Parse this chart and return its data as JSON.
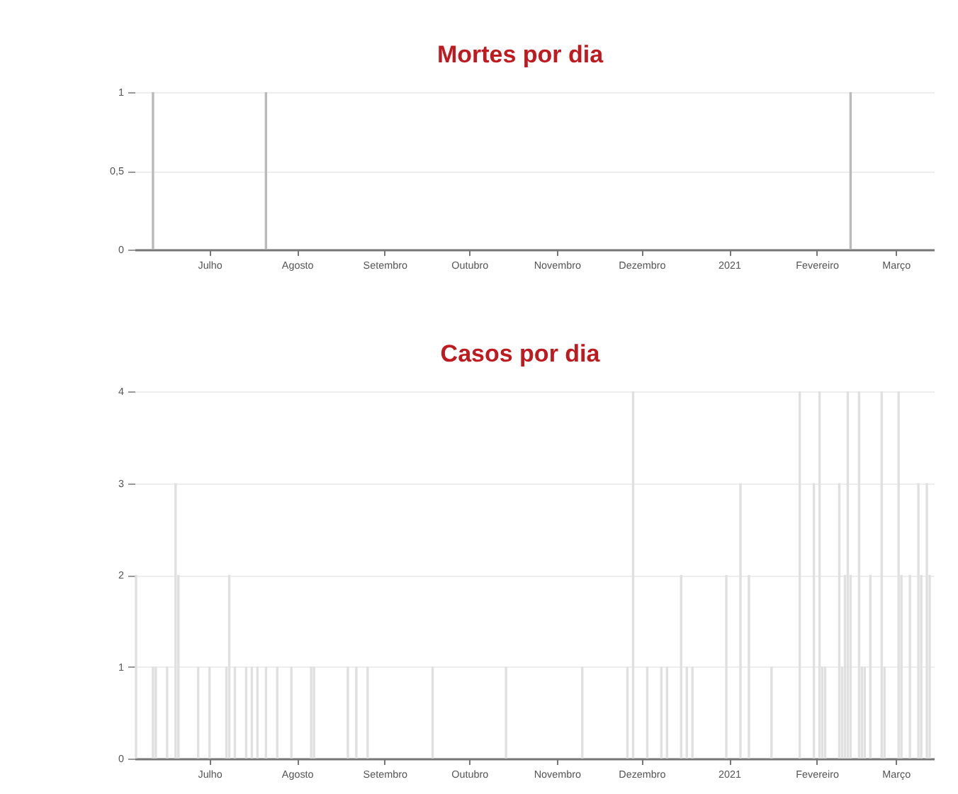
{
  "chart_data": [
    {
      "type": "bar",
      "title": "Mortes por dia",
      "x": [
        "2020-06-11",
        "2020-07-21",
        "2021-02-13"
      ],
      "values": [
        1,
        1,
        1
      ],
      "color": "#bababa",
      "xlim": [
        "2020-06-04T12:00",
        "2021-03-14T12:00"
      ],
      "xticks": [
        {
          "value": "2020-07-01",
          "label": "Julho"
        },
        {
          "value": "2020-08-01",
          "label": "Agosto"
        },
        {
          "value": "2020-09-01",
          "label": "Setembro"
        },
        {
          "value": "2020-10-01",
          "label": "Outubro"
        },
        {
          "value": "2020-11-01",
          "label": "Novembro"
        },
        {
          "value": "2020-12-01",
          "label": "Dezembro"
        },
        {
          "value": "2021-01-01",
          "label": "2021"
        },
        {
          "value": "2021-02-01",
          "label": "Fevereiro"
        },
        {
          "value": "2021-03-01",
          "label": "Março"
        }
      ],
      "ylim": [
        0,
        1
      ],
      "yticks": [
        0,
        {
          "value": 0.5,
          "label": "0,5"
        },
        1
      ],
      "grid": "y"
    },
    {
      "type": "bar",
      "title": "Casos por dia",
      "x": [
        "2020-06-05",
        "2020-06-11",
        "2020-06-12",
        "2020-06-16",
        "2020-06-19",
        "2020-06-20",
        "2020-06-27",
        "2020-07-01",
        "2020-07-07",
        "2020-07-08",
        "2020-07-10",
        "2020-07-14",
        "2020-07-16",
        "2020-07-18",
        "2020-07-21",
        "2020-07-25",
        "2020-07-30",
        "2020-08-06",
        "2020-08-07",
        "2020-08-19",
        "2020-08-22",
        "2020-08-26",
        "2020-09-18",
        "2020-10-14",
        "2020-11-10",
        "2020-11-26",
        "2020-11-28",
        "2020-12-03",
        "2020-12-08",
        "2020-12-10",
        "2020-12-15",
        "2020-12-17",
        "2020-12-19",
        "2020-12-31",
        "2021-01-05",
        "2021-01-08",
        "2021-01-16",
        "2021-01-26",
        "2021-01-31",
        "2021-02-02",
        "2021-02-03",
        "2021-02-04",
        "2021-02-09",
        "2021-02-10",
        "2021-02-11",
        "2021-02-12",
        "2021-02-13",
        "2021-02-16",
        "2021-02-17",
        "2021-02-18",
        "2021-02-20",
        "2021-02-24",
        "2021-02-25",
        "2021-03-02",
        "2021-03-03",
        "2021-03-06",
        "2021-03-09",
        "2021-03-10",
        "2021-03-12",
        "2021-03-13"
      ],
      "values": [
        2,
        1,
        1,
        1,
        3,
        2,
        1,
        1,
        1,
        2,
        1,
        1,
        1,
        1,
        1,
        1,
        1,
        1,
        1,
        1,
        1,
        1,
        1,
        1,
        1,
        1,
        4,
        1,
        1,
        1,
        2,
        1,
        1,
        2,
        3,
        2,
        1,
        4,
        3,
        4,
        1,
        1,
        3,
        1,
        2,
        4,
        2,
        4,
        1,
        1,
        2,
        4,
        1,
        4,
        2,
        2,
        3,
        2,
        3,
        2
      ],
      "color": "#e0e0e0",
      "xlim": [
        "2020-06-04T12:00",
        "2021-03-14T12:00"
      ],
      "xticks": [
        {
          "value": "2020-07-01",
          "label": "Julho"
        },
        {
          "value": "2020-08-01",
          "label": "Agosto"
        },
        {
          "value": "2020-09-01",
          "label": "Setembro"
        },
        {
          "value": "2020-10-01",
          "label": "Outubro"
        },
        {
          "value": "2020-11-01",
          "label": "Novembro"
        },
        {
          "value": "2020-12-01",
          "label": "Dezembro"
        },
        {
          "value": "2021-01-01",
          "label": "2021"
        },
        {
          "value": "2021-02-01",
          "label": "Fevereiro"
        },
        {
          "value": "2021-03-01",
          "label": "Março"
        }
      ],
      "ylim": [
        0,
        4
      ],
      "yticks": [
        0,
        1,
        2,
        3,
        4
      ],
      "grid": "y"
    }
  ]
}
